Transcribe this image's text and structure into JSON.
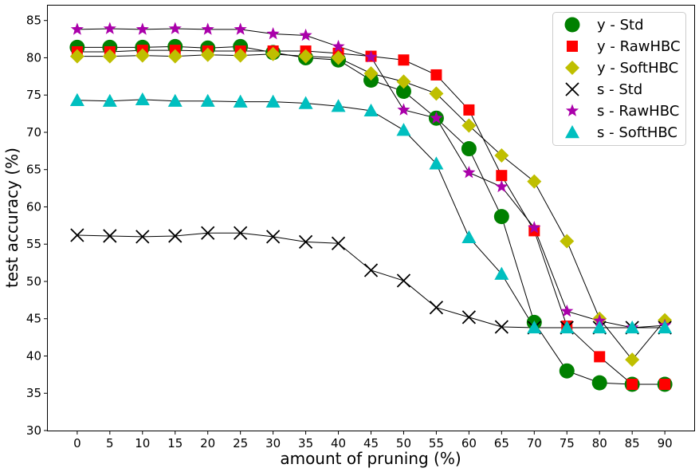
{
  "chart_data": {
    "type": "line",
    "title": "",
    "xlabel": "amount of pruning (%)",
    "ylabel": "test accuracy (%)",
    "x": [
      0,
      5,
      10,
      15,
      20,
      25,
      30,
      35,
      40,
      45,
      50,
      55,
      60,
      65,
      70,
      75,
      80,
      85,
      90
    ],
    "x_ticks": [
      0,
      5,
      10,
      15,
      20,
      25,
      30,
      35,
      40,
      45,
      50,
      55,
      60,
      65,
      70,
      75,
      80,
      85,
      90
    ],
    "xlim": [
      -4.5,
      94.5
    ],
    "y_ticks": [
      30,
      35,
      40,
      45,
      50,
      55,
      60,
      65,
      70,
      75,
      80,
      85
    ],
    "ylim": [
      30,
      87
    ],
    "grid": false,
    "legend_position": "top-right",
    "line_color": "#000000",
    "series": [
      {
        "name": "y - Std",
        "marker": "circle",
        "color": "#008000",
        "values": [
          81.4,
          81.4,
          81.4,
          81.5,
          81.3,
          81.5,
          80.7,
          80.0,
          79.7,
          77.0,
          75.5,
          71.9,
          67.8,
          58.7,
          44.5,
          38.0,
          36.4,
          36.2,
          36.2
        ]
      },
      {
        "name": "y - RawHBC",
        "marker": "square",
        "color": "#ff0000",
        "values": [
          80.8,
          80.8,
          81.0,
          81.0,
          80.9,
          80.9,
          80.9,
          80.9,
          80.6,
          80.2,
          79.7,
          77.7,
          73.0,
          64.2,
          56.8,
          44.0,
          39.9,
          36.2,
          36.2
        ]
      },
      {
        "name": "y - SoftHBC",
        "marker": "diamond",
        "color": "#bfbf00",
        "values": [
          80.2,
          80.2,
          80.3,
          80.2,
          80.4,
          80.3,
          80.5,
          80.2,
          80.0,
          77.9,
          76.8,
          75.2,
          70.9,
          66.9,
          63.4,
          55.4,
          45.0,
          39.5,
          44.8
        ]
      },
      {
        "name": "s - Std",
        "marker": "x",
        "color": "#000000",
        "values": [
          56.2,
          56.1,
          56.0,
          56.1,
          56.5,
          56.5,
          56.0,
          55.3,
          55.1,
          51.5,
          50.1,
          46.5,
          45.2,
          43.9,
          43.8,
          43.8,
          43.8,
          43.8,
          43.8
        ]
      },
      {
        "name": "s - RawHBC",
        "marker": "star",
        "color": "#aa00aa",
        "values": [
          83.8,
          83.9,
          83.8,
          83.9,
          83.8,
          83.8,
          83.2,
          83.0,
          81.5,
          80.1,
          73.0,
          71.9,
          64.6,
          62.7,
          57.2,
          46.0,
          44.7,
          43.8,
          44.1
        ]
      },
      {
        "name": "s - SoftHBC",
        "marker": "triangle",
        "color": "#00bfbf",
        "values": [
          74.3,
          74.2,
          74.4,
          74.2,
          74.2,
          74.1,
          74.1,
          73.9,
          73.5,
          72.9,
          70.3,
          65.8,
          55.9,
          51.0,
          43.8,
          43.8,
          43.8,
          43.8,
          43.8
        ]
      }
    ]
  }
}
